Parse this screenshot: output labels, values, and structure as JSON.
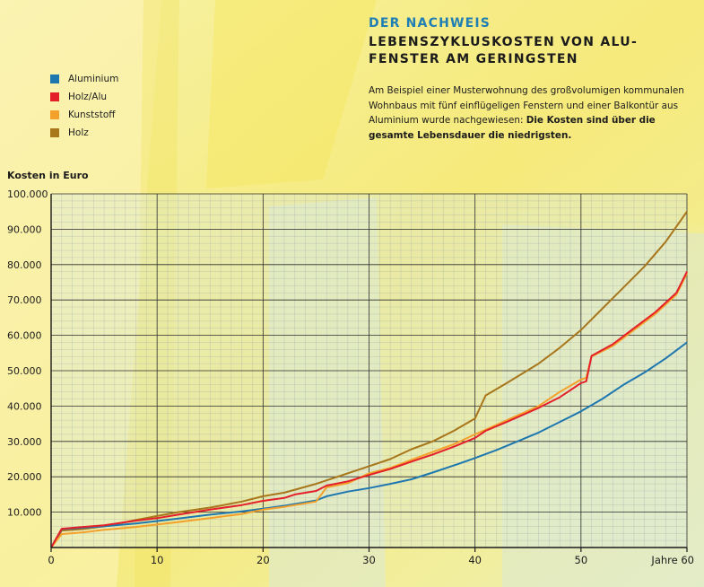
{
  "header": {
    "kicker": "DER NACHWEIS",
    "title": "LEBENSZYKLUSKOSTEN VON ALU-FENSTER AM GERINGSTEN",
    "subtitle_plain": "Am Beispiel einer Musterwohnung des großvolumigen kommunalen Wohnbaus mit fünf einflügeligen Fenstern und einer Balkontür aus Aluminium wurde nachgewiesen: ",
    "subtitle_bold": "Die Kosten sind über die gesamte Lebensdauer die niedrigsten."
  },
  "chart_data": {
    "type": "line",
    "ylabel": "Kosten in Euro",
    "xlabel": "Jahre",
    "xlim": [
      0,
      60
    ],
    "ylim": [
      0,
      100000
    ],
    "xticks": [
      0,
      10,
      20,
      30,
      40,
      50,
      60
    ],
    "xtick_labels": [
      "0",
      "10",
      "20",
      "30",
      "40",
      "50",
      "Jahre 60"
    ],
    "yticks": [
      10000,
      20000,
      30000,
      40000,
      50000,
      60000,
      70000,
      80000,
      90000,
      100000
    ],
    "ytick_labels": [
      "10.000",
      "20.000",
      "30.000",
      "40.000",
      "50.000",
      "60.000",
      "70.000",
      "80.000",
      "90.000",
      "100.000"
    ],
    "grid": true,
    "legend_position": "top-left",
    "series": [
      {
        "name": "Aluminium",
        "color": "#1f77b0",
        "points": [
          [
            0,
            0
          ],
          [
            1,
            5200
          ],
          [
            3,
            5600
          ],
          [
            5,
            6000
          ],
          [
            8,
            6800
          ],
          [
            10,
            7500
          ],
          [
            12,
            8200
          ],
          [
            15,
            9300
          ],
          [
            18,
            10200
          ],
          [
            20,
            11000
          ],
          [
            22,
            11800
          ],
          [
            24,
            12800
          ],
          [
            25,
            13300
          ],
          [
            26,
            14500
          ],
          [
            28,
            15800
          ],
          [
            30,
            16800
          ],
          [
            32,
            18000
          ],
          [
            34,
            19300
          ],
          [
            36,
            21200
          ],
          [
            38,
            23200
          ],
          [
            40,
            25300
          ],
          [
            42,
            27500
          ],
          [
            44,
            30000
          ],
          [
            46,
            32500
          ],
          [
            48,
            35500
          ],
          [
            50,
            38500
          ],
          [
            52,
            42000
          ],
          [
            54,
            46000
          ],
          [
            56,
            49500
          ],
          [
            58,
            53500
          ],
          [
            60,
            58000
          ]
        ]
      },
      {
        "name": "Holz/Alu",
        "color": "#e3202a",
        "points": [
          [
            0,
            0
          ],
          [
            1,
            5300
          ],
          [
            3,
            5800
          ],
          [
            5,
            6300
          ],
          [
            8,
            7600
          ],
          [
            10,
            8300
          ],
          [
            12,
            9300
          ],
          [
            15,
            10700
          ],
          [
            18,
            12000
          ],
          [
            20,
            13200
          ],
          [
            22,
            14000
          ],
          [
            23,
            15000
          ],
          [
            25,
            16000
          ],
          [
            26,
            17500
          ],
          [
            28,
            18700
          ],
          [
            30,
            20500
          ],
          [
            32,
            22200
          ],
          [
            34,
            24300
          ],
          [
            36,
            26300
          ],
          [
            38,
            28500
          ],
          [
            40,
            31000
          ],
          [
            41,
            33000
          ],
          [
            43,
            35500
          ],
          [
            46,
            39500
          ],
          [
            48,
            42500
          ],
          [
            50,
            46500
          ],
          [
            50.5,
            47000
          ],
          [
            51,
            54200
          ],
          [
            53,
            57500
          ],
          [
            55,
            62000
          ],
          [
            57,
            66500
          ],
          [
            59,
            72000
          ],
          [
            60,
            78000
          ]
        ]
      },
      {
        "name": "Kunststoff",
        "color": "#f3a12a",
        "points": [
          [
            0,
            0
          ],
          [
            1,
            3800
          ],
          [
            3,
            4300
          ],
          [
            5,
            5000
          ],
          [
            8,
            5800
          ],
          [
            10,
            6500
          ],
          [
            12,
            7200
          ],
          [
            15,
            8300
          ],
          [
            18,
            9500
          ],
          [
            20,
            10700
          ],
          [
            22,
            11500
          ],
          [
            24,
            12500
          ],
          [
            25,
            13000
          ],
          [
            26,
            17000
          ],
          [
            28,
            18200
          ],
          [
            30,
            21000
          ],
          [
            32,
            22500
          ],
          [
            34,
            24800
          ],
          [
            36,
            27000
          ],
          [
            38,
            29200
          ],
          [
            40,
            32000
          ],
          [
            41,
            33300
          ],
          [
            43,
            36000
          ],
          [
            46,
            40000
          ],
          [
            48,
            44000
          ],
          [
            50,
            47500
          ],
          [
            50.5,
            48000
          ],
          [
            51,
            54000
          ],
          [
            53,
            57000
          ],
          [
            55,
            61500
          ],
          [
            57,
            66000
          ],
          [
            59,
            71500
          ],
          [
            60,
            77500
          ]
        ]
      },
      {
        "name": "Holz",
        "color": "#a8761b",
        "points": [
          [
            0,
            0
          ],
          [
            1,
            4800
          ],
          [
            3,
            5200
          ],
          [
            5,
            6000
          ],
          [
            8,
            7800
          ],
          [
            10,
            8900
          ],
          [
            12,
            10000
          ],
          [
            15,
            11300
          ],
          [
            18,
            13000
          ],
          [
            20,
            14500
          ],
          [
            22,
            15500
          ],
          [
            25,
            18000
          ],
          [
            28,
            21000
          ],
          [
            30,
            23000
          ],
          [
            32,
            25000
          ],
          [
            34,
            27800
          ],
          [
            36,
            30000
          ],
          [
            38,
            33000
          ],
          [
            40,
            36500
          ],
          [
            41,
            43000
          ],
          [
            43,
            46500
          ],
          [
            46,
            52000
          ],
          [
            48,
            56500
          ],
          [
            50,
            61500
          ],
          [
            52,
            67500
          ],
          [
            54,
            73500
          ],
          [
            56,
            79500
          ],
          [
            58,
            86500
          ],
          [
            60,
            95000
          ]
        ]
      }
    ]
  },
  "colors": {
    "background": "#f3ef8e",
    "plot_background": "#dcecd7",
    "accent": "#1f7fb4"
  }
}
